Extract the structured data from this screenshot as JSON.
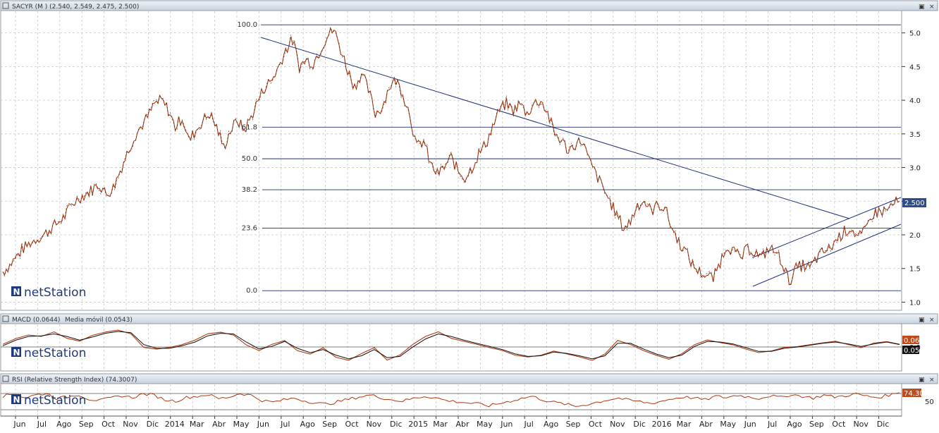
{
  "panels": {
    "price": {
      "title": "SACYR (M ) (2.540, 2.549, 2.475, 2.500)",
      "last_value_label": "2.500",
      "logo_text": "netStation",
      "control_restore": "▣",
      "control_close": "×"
    },
    "macd": {
      "title_macd": "MACD (0.0644)",
      "title_ma": "Media móvil (0.0543)",
      "value_label_1": "0.06",
      "value_label_2": "0.05",
      "logo_text": "netStation",
      "control_restore": "▣",
      "control_close": "×"
    },
    "rsi": {
      "title": "RSI (Relative Strength Index) (74.3007)",
      "value_label": "74.30",
      "logo_text": "netStation",
      "control_restore": "▣",
      "control_close": "×"
    }
  },
  "chart_data": [
    {
      "type": "line",
      "name": "SACYR",
      "y_axis_ticks": [
        "5.0",
        "4.5",
        "4.0",
        "3.5",
        "3.0",
        "2.5",
        "2.0",
        "1.5",
        "1.0"
      ],
      "y_axis_values": [
        5.0,
        4.5,
        4.0,
        3.5,
        3.0,
        2.5,
        2.0,
        1.5,
        1.0
      ],
      "ylim": [
        0.9,
        5.3
      ],
      "x_month_labels": [
        "Jun",
        "Jul",
        "Ago",
        "Sep",
        "Oct",
        "Nov",
        "Dic",
        "2014",
        "Mar",
        "Abr",
        "May",
        "Jun",
        "Jul",
        "Ago",
        "Sep",
        "Oct",
        "Nov",
        "Dic",
        "2015",
        "Mar",
        "Abr",
        "May",
        "Jun",
        "Jul",
        "Ago",
        "Sep",
        "Oct",
        "Nov",
        "Dic",
        "2016",
        "Mar",
        "Abr",
        "May",
        "Jun",
        "Jul",
        "Ago",
        "Sep",
        "Oct",
        "Nov",
        "Dic"
      ],
      "series": [
        {
          "values": [
            1.45,
            1.55,
            1.68,
            1.8,
            1.88,
            1.95,
            2.0,
            2.1,
            2.18,
            2.28,
            2.45,
            2.55,
            2.6,
            2.68,
            2.75,
            2.6,
            2.7,
            2.95,
            3.2,
            3.45,
            3.6,
            3.75,
            3.95,
            4.0,
            3.85,
            3.6,
            3.75,
            3.4,
            3.55,
            3.7,
            3.8,
            3.6,
            3.3,
            3.55,
            3.7,
            3.55,
            3.75,
            4.0,
            4.2,
            4.3,
            4.5,
            4.75,
            4.9,
            4.5,
            4.6,
            4.55,
            4.75,
            4.95,
            5.05,
            4.75,
            4.45,
            4.2,
            4.4,
            4.15,
            3.8,
            3.9,
            4.2,
            4.3,
            4.1,
            3.8,
            3.3,
            3.4,
            3.05,
            2.9,
            3.0,
            3.15,
            2.95,
            2.85,
            3.0,
            3.2,
            3.35,
            3.6,
            3.85,
            3.95,
            3.85,
            3.95,
            3.8,
            3.95,
            4.0,
            3.8,
            3.5,
            3.4,
            3.25,
            3.35,
            3.4,
            3.1,
            2.9,
            2.7,
            2.5,
            2.3,
            2.1,
            2.2,
            2.45,
            2.5,
            2.35,
            2.45,
            2.4,
            2.1,
            1.9,
            1.75,
            1.55,
            1.45,
            1.4,
            1.35,
            1.6,
            1.85,
            1.75,
            1.65,
            1.8,
            1.75,
            1.65,
            1.8,
            1.75,
            1.6,
            1.3,
            1.5,
            1.55,
            1.5,
            1.65,
            1.75,
            1.8,
            1.95,
            2.05,
            2.1,
            1.95,
            2.05,
            2.3,
            2.35,
            2.35,
            2.45,
            2.5
          ]
        }
      ],
      "fibonacci_levels": [
        {
          "label": "100.0",
          "value": 5.12
        },
        {
          "label": "61.8",
          "value": 3.6
        },
        {
          "label": "50.0",
          "value": 3.13
        },
        {
          "label": "38.2",
          "value": 2.67
        },
        {
          "label": "23.6",
          "value": 2.1
        },
        {
          "label": "0.0",
          "value": 1.17
        }
      ],
      "last_value": 2.5
    },
    {
      "type": "line",
      "name": "MACD",
      "y_axis_ticks": [
        "0.0"
      ],
      "ylim": [
        -0.35,
        0.35
      ],
      "series": [
        {
          "name": "MACD (0.0644)",
          "color": "#b03a10"
        },
        {
          "name": "Media móvil (0.0543)",
          "color": "#111111"
        }
      ],
      "values": [
        0.05,
        0.15,
        0.2,
        0.18,
        0.25,
        0.15,
        0.1,
        0.2,
        0.25,
        0.28,
        0.22,
        0.0,
        -0.02,
        0.0,
        0.05,
        0.12,
        0.22,
        0.25,
        0.2,
        0.05,
        -0.05,
        0.05,
        0.12,
        -0.05,
        -0.1,
        0.0,
        -0.15,
        -0.2,
        -0.1,
        0.0,
        -0.2,
        -0.12,
        0.05,
        0.18,
        0.25,
        0.15,
        0.1,
        0.05,
        0.0,
        -0.05,
        -0.12,
        -0.15,
        -0.12,
        -0.05,
        -0.1,
        -0.15,
        -0.2,
        -0.1,
        0.12,
        0.05,
        -0.05,
        -0.12,
        -0.18,
        -0.1,
        0.05,
        0.12,
        0.08,
        0.05,
        -0.02,
        -0.08,
        -0.05,
        0.0,
        0.02,
        0.05,
        0.08,
        0.1,
        0.05,
        0.0,
        0.08,
        0.1,
        0.06
      ],
      "ma_values": [
        0.03,
        0.12,
        0.18,
        0.19,
        0.22,
        0.18,
        0.12,
        0.17,
        0.23,
        0.26,
        0.24,
        0.05,
        -0.01,
        -0.01,
        0.03,
        0.09,
        0.19,
        0.23,
        0.22,
        0.09,
        -0.02,
        0.02,
        0.1,
        -0.01,
        -0.08,
        -0.03,
        -0.12,
        -0.18,
        -0.13,
        -0.03,
        -0.16,
        -0.14,
        0.01,
        0.14,
        0.22,
        0.18,
        0.12,
        0.07,
        0.02,
        -0.03,
        -0.1,
        -0.14,
        -0.13,
        -0.07,
        -0.09,
        -0.13,
        -0.18,
        -0.13,
        0.07,
        0.07,
        -0.02,
        -0.1,
        -0.16,
        -0.12,
        0.02,
        0.1,
        0.09,
        0.06,
        0.0,
        -0.06,
        -0.06,
        -0.01,
        0.01,
        0.04,
        0.07,
        0.09,
        0.06,
        0.02,
        0.06,
        0.09,
        0.05
      ]
    },
    {
      "type": "line",
      "name": "RSI (Relative Strength Index)",
      "y_axis_ticks": [
        "50"
      ],
      "reference_lines": [
        70,
        30
      ],
      "ylim": [
        0,
        100
      ],
      "values": [
        62,
        70,
        58,
        66,
        72,
        55,
        60,
        68,
        52,
        48,
        56,
        64,
        58,
        70,
        66,
        50,
        46,
        58,
        62,
        68,
        54,
        60,
        72,
        65,
        48,
        42,
        50,
        56,
        46,
        40,
        35,
        44,
        52,
        60,
        66,
        58,
        50,
        46,
        55,
        62,
        58,
        48,
        44,
        40,
        36,
        30,
        38,
        46,
        55,
        62,
        50,
        42,
        36,
        28,
        34,
        42,
        50,
        56,
        48,
        44,
        38,
        46,
        54,
        60,
        56,
        50,
        62,
        58,
        66,
        60,
        55,
        64,
        58,
        68,
        62,
        56,
        66,
        60,
        64,
        70,
        62,
        58,
        66,
        74
      ]
    }
  ]
}
